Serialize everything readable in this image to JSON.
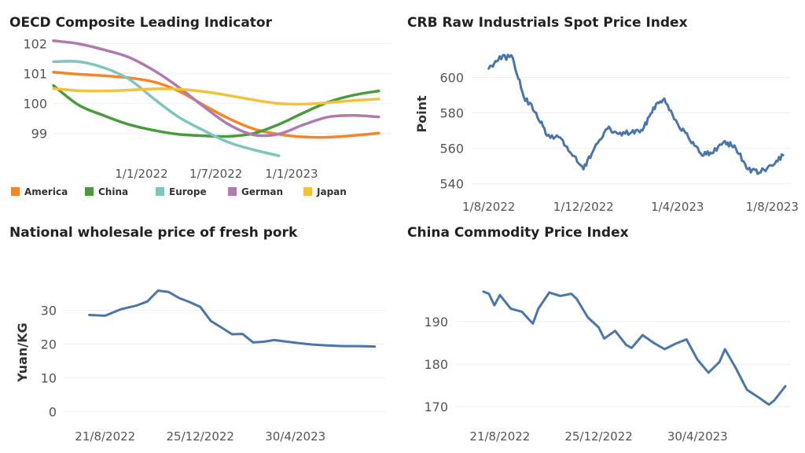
{
  "chart_data": [
    {
      "type": "line",
      "title": "OECD Composite Leading Indicator",
      "ylabel": "",
      "xlabel": "",
      "x": [
        "2021-06-01",
        "2021-08-01",
        "2021-10-01",
        "2021-12-01",
        "2022-02-01",
        "2022-04-01",
        "2022-06-01",
        "2022-08-01",
        "2022-10-01",
        "2022-12-01",
        "2023-02-01",
        "2023-04-01",
        "2023-06-01",
        "2023-08-01"
      ],
      "x_ticks": [
        "1/1/2022",
        "1/7/2022",
        "1/1/2023"
      ],
      "x_tick_values": [
        "2022-01-01",
        "2022-07-01",
        "2023-01-01"
      ],
      "xlim": [
        "2021-06-01",
        "2023-09-01"
      ],
      "ylim": [
        98.2,
        102.2
      ],
      "y_ticks": [
        99,
        100,
        101,
        102
      ],
      "legend_position": "bottom",
      "series": [
        {
          "name": "America",
          "color": "#F4862A",
          "values": [
            101.05,
            100.98,
            100.93,
            100.86,
            100.72,
            100.42,
            99.95,
            99.5,
            99.15,
            98.97,
            98.88,
            98.87,
            98.93,
            99.01
          ]
        },
        {
          "name": "China",
          "color": "#4C9A3F",
          "values": [
            100.6,
            99.95,
            99.6,
            99.3,
            99.1,
            98.97,
            98.92,
            98.9,
            99.0,
            99.3,
            99.7,
            100.05,
            100.28,
            100.42
          ]
        },
        {
          "name": "Europe",
          "color": "#7FC4BE",
          "values": [
            101.4,
            101.4,
            101.2,
            100.82,
            100.15,
            99.55,
            99.1,
            98.7,
            98.45,
            98.25,
            null,
            null,
            null,
            null
          ]
        },
        {
          "name": "German",
          "color": "#B07AAE",
          "values": [
            102.1,
            102.0,
            101.8,
            101.55,
            101.1,
            100.55,
            99.9,
            99.3,
            98.95,
            98.98,
            99.3,
            99.55,
            99.6,
            99.55
          ]
        },
        {
          "name": "Japan",
          "color": "#F2C23D",
          "values": [
            100.5,
            100.43,
            100.42,
            100.45,
            100.49,
            100.48,
            100.4,
            100.27,
            100.12,
            100.0,
            99.98,
            100.03,
            100.1,
            100.15
          ]
        }
      ]
    },
    {
      "type": "line",
      "title": "CRB Raw Industrials Spot Price Index",
      "ylabel": "Point",
      "xlabel": "",
      "x": [
        "2022-08-01",
        "2022-08-15",
        "2022-09-01",
        "2022-09-15",
        "2022-10-01",
        "2022-10-15",
        "2022-11-01",
        "2022-11-15",
        "2022-12-01",
        "2022-12-15",
        "2023-01-01",
        "2023-01-15",
        "2023-02-01",
        "2023-02-15",
        "2023-03-01",
        "2023-03-15",
        "2023-04-01",
        "2023-04-15",
        "2023-05-01",
        "2023-05-15",
        "2023-06-01",
        "2023-06-15",
        "2023-07-01",
        "2023-07-15",
        "2023-08-01",
        "2023-08-15"
      ],
      "x_ticks": [
        "1/8/2022",
        "1/12/2022",
        "1/4/2023",
        "1/8/2023"
      ],
      "x_tick_values": [
        "2022-08-01",
        "2022-12-01",
        "2023-04-01",
        "2023-08-01"
      ],
      "xlim": [
        "2022-07-10",
        "2023-08-25"
      ],
      "ylim": [
        537,
        618
      ],
      "y_ticks": [
        540,
        560,
        580,
        600
      ],
      "color": "#4A76A8",
      "series": [
        {
          "name": "",
          "values": [
            605,
            612,
            611,
            589,
            580,
            567,
            566,
            557,
            548,
            560,
            571,
            568,
            569,
            570,
            583,
            588,
            574,
            566,
            557,
            557,
            564,
            560,
            548,
            546,
            550,
            556
          ]
        }
      ]
    },
    {
      "type": "line",
      "title": "National wholesale price of fresh pork",
      "ylabel": "Yuan/KG",
      "xlabel": "",
      "x": [
        "2022-07-31",
        "2022-08-21",
        "2022-09-11",
        "2022-10-02",
        "2022-10-16",
        "2022-10-30",
        "2022-11-13",
        "2022-11-27",
        "2022-12-11",
        "2022-12-25",
        "2023-01-08",
        "2023-01-22",
        "2023-02-05",
        "2023-02-19",
        "2023-03-05",
        "2023-03-19",
        "2023-04-02",
        "2023-04-16",
        "2023-04-30",
        "2023-05-21",
        "2023-06-11",
        "2023-07-02",
        "2023-07-23",
        "2023-08-13"
      ],
      "x_ticks": [
        "21/8/2022",
        "25/12/2022",
        "30/4/2023"
      ],
      "x_tick_values": [
        "2022-08-21",
        "2022-12-25",
        "2023-04-30"
      ],
      "xlim": [
        "2022-06-26",
        "2023-08-27"
      ],
      "ylim": [
        -1,
        38
      ],
      "y_ticks": [
        0,
        10,
        20,
        30
      ],
      "color": "#4A76A8",
      "series": [
        {
          "name": "",
          "values": [
            28.6,
            28.4,
            30.3,
            31.4,
            32.6,
            35.8,
            35.4,
            33.6,
            32.4,
            31.0,
            26.8,
            24.9,
            22.9,
            23.0,
            20.5,
            20.7,
            21.2,
            20.8,
            20.4,
            19.9,
            19.6,
            19.4,
            19.4,
            19.3
          ]
        }
      ]
    },
    {
      "type": "line",
      "title": "China Commodity Price Index",
      "ylabel": "",
      "xlabel": "",
      "x": [
        "2022-07-31",
        "2022-08-07",
        "2022-08-14",
        "2022-08-21",
        "2022-09-04",
        "2022-09-18",
        "2022-10-02",
        "2022-10-09",
        "2022-10-23",
        "2022-11-06",
        "2022-11-20",
        "2022-11-27",
        "2022-12-11",
        "2022-12-25",
        "2023-01-01",
        "2023-01-15",
        "2023-01-29",
        "2023-02-05",
        "2023-02-19",
        "2023-03-05",
        "2023-03-19",
        "2023-04-02",
        "2023-04-16",
        "2023-04-30",
        "2023-05-14",
        "2023-05-28",
        "2023-06-04",
        "2023-06-18",
        "2023-07-02",
        "2023-07-16",
        "2023-07-30",
        "2023-08-06",
        "2023-08-20"
      ],
      "x_ticks": [
        "21/8/2022",
        "25/12/2022",
        "30/4/2023"
      ],
      "x_tick_values": [
        "2022-08-21",
        "2022-12-25",
        "2023-04-30"
      ],
      "xlim": [
        "2022-06-26",
        "2023-08-27"
      ],
      "ylim": [
        168,
        199
      ],
      "y_ticks": [
        170,
        180,
        190
      ],
      "color": "#4A76A8",
      "series": [
        {
          "name": "",
          "values": [
            197,
            196.5,
            193.8,
            196.2,
            193,
            192.3,
            189.5,
            193,
            196.8,
            196,
            196.5,
            195.3,
            191,
            188.6,
            186,
            187.8,
            184.5,
            183.8,
            186.8,
            185,
            183.5,
            184.8,
            185.8,
            181,
            178,
            180.5,
            183.5,
            179,
            174,
            172.3,
            170.5,
            171.5,
            174.8
          ]
        }
      ]
    }
  ]
}
